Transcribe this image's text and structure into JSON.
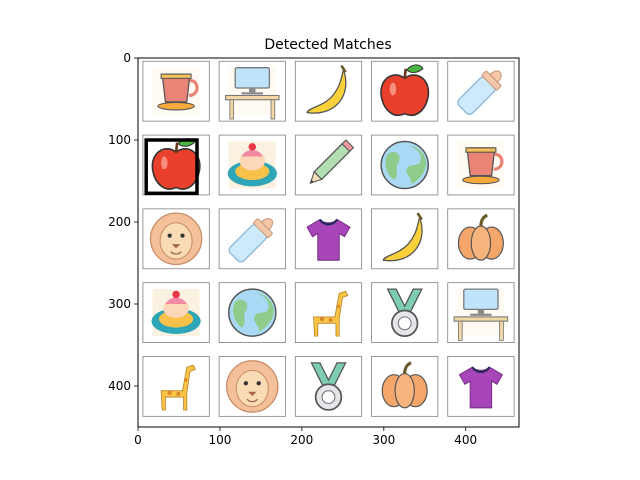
{
  "chart_data": {
    "type": "image-grid",
    "title": "Detected Matches",
    "xlim": [
      0,
      465
    ],
    "ylim": [
      450,
      0
    ],
    "x_ticks": [
      0,
      100,
      200,
      300,
      400
    ],
    "y_ticks": [
      0,
      100,
      200,
      300,
      400
    ],
    "grid": false,
    "cell_width": 93,
    "cell_height": 90,
    "tiles": [
      {
        "row": 0,
        "col": 0,
        "icon": "teacup-icon"
      },
      {
        "row": 0,
        "col": 1,
        "icon": "desk-computer-icon"
      },
      {
        "row": 0,
        "col": 2,
        "icon": "banana-icon"
      },
      {
        "row": 0,
        "col": 3,
        "icon": "apple-icon"
      },
      {
        "row": 0,
        "col": 4,
        "icon": "baby-bottle-icon"
      },
      {
        "row": 1,
        "col": 0,
        "icon": "apple-icon",
        "highlighted": true
      },
      {
        "row": 1,
        "col": 1,
        "icon": "cake-icon"
      },
      {
        "row": 1,
        "col": 2,
        "icon": "pencil-icon"
      },
      {
        "row": 1,
        "col": 3,
        "icon": "globe-icon"
      },
      {
        "row": 1,
        "col": 4,
        "icon": "teacup-icon"
      },
      {
        "row": 2,
        "col": 0,
        "icon": "lion-icon"
      },
      {
        "row": 2,
        "col": 1,
        "icon": "baby-bottle-icon"
      },
      {
        "row": 2,
        "col": 2,
        "icon": "tshirt-icon"
      },
      {
        "row": 2,
        "col": 3,
        "icon": "banana-icon"
      },
      {
        "row": 2,
        "col": 4,
        "icon": "pumpkin-icon"
      },
      {
        "row": 3,
        "col": 0,
        "icon": "cake-icon"
      },
      {
        "row": 3,
        "col": 1,
        "icon": "globe-icon"
      },
      {
        "row": 3,
        "col": 2,
        "icon": "giraffe-icon"
      },
      {
        "row": 3,
        "col": 3,
        "icon": "medal-icon"
      },
      {
        "row": 3,
        "col": 4,
        "icon": "desk-computer-icon"
      },
      {
        "row": 4,
        "col": 0,
        "icon": "giraffe-icon"
      },
      {
        "row": 4,
        "col": 1,
        "icon": "lion-icon"
      },
      {
        "row": 4,
        "col": 2,
        "icon": "medal-icon"
      },
      {
        "row": 4,
        "col": 3,
        "icon": "pumpkin-icon"
      },
      {
        "row": 4,
        "col": 4,
        "icon": "tshirt-icon"
      }
    ],
    "highlight_box": {
      "x": [
        10,
        72
      ],
      "y": [
        100,
        165
      ],
      "color": "#000000"
    }
  }
}
